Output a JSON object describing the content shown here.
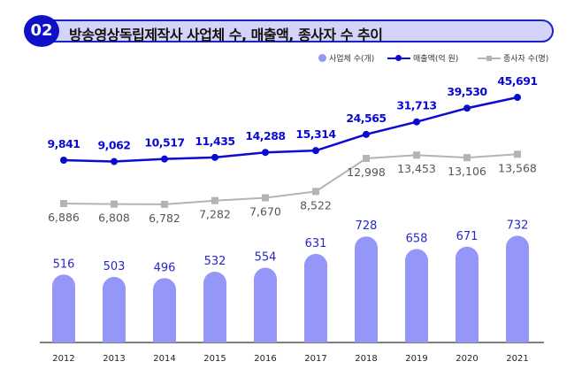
{
  "header": {
    "badge": "02",
    "title": "방송영상독립제작사 사업체 수, 매출액, 종사자 수 추이"
  },
  "chart_data": {
    "type": "bar+line",
    "categories": [
      "2012",
      "2013",
      "2014",
      "2015",
      "2016",
      "2017",
      "2018",
      "2019",
      "2020",
      "2021"
    ],
    "series": [
      {
        "name": "사업체 수(개)",
        "type": "bar",
        "color": "#9496f8",
        "label_color": "#2828c8",
        "values": [
          516,
          503,
          496,
          532,
          554,
          631,
          728,
          658,
          671,
          732
        ],
        "labels": [
          "516",
          "503",
          "496",
          "532",
          "554",
          "631",
          "728",
          "658",
          "671",
          "732"
        ]
      },
      {
        "name": "매출액(억 원)",
        "type": "line",
        "color": "#0a0ad0",
        "values": [
          9841,
          9062,
          10517,
          11435,
          14288,
          15314,
          24565,
          31713,
          39530,
          45691
        ],
        "labels": [
          "9,841",
          "9,062",
          "10,517",
          "11,435",
          "14,288",
          "15,314",
          "24,565",
          "31,713",
          "39,530",
          "45,691"
        ]
      },
      {
        "name": "종사자 수(명)",
        "type": "line",
        "color": "#b4b4b4",
        "label_color": "#555555",
        "values": [
          6886,
          6808,
          6782,
          7282,
          7670,
          8522,
          12998,
          13453,
          13106,
          13568
        ],
        "labels": [
          "6,886",
          "6,808",
          "6,782",
          "7,282",
          "7,670",
          "8,522",
          "12,998",
          "13,453",
          "13,106",
          "13,568"
        ]
      }
    ],
    "legend_position": "top-right",
    "grid": false
  }
}
